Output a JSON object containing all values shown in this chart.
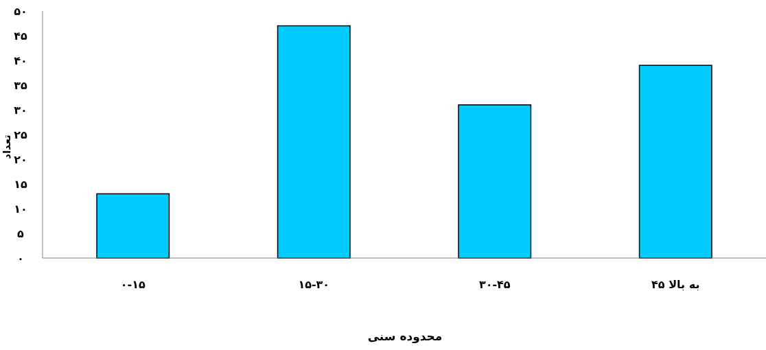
{
  "chart_data": {
    "type": "bar",
    "xlabel": "محدوده سنی",
    "ylabel": "تعداد",
    "categories": [
      "۰-۱۵",
      "۱۵-۳۰",
      "۳۰-۴۵",
      "۴۵ به بالا"
    ],
    "values": [
      13,
      47,
      31,
      39
    ],
    "color": "#00ccff",
    "ylim": [
      0,
      50
    ],
    "yticks": [
      {
        "value": 0,
        "label": "۰"
      },
      {
        "value": 5,
        "label": "۵"
      },
      {
        "value": 10,
        "label": "۱۰"
      },
      {
        "value": 15,
        "label": "۱۵"
      },
      {
        "value": 20,
        "label": "۲۰"
      },
      {
        "value": 25,
        "label": "۲۵"
      },
      {
        "value": 30,
        "label": "۳۰"
      },
      {
        "value": 35,
        "label": "۳۵"
      },
      {
        "value": 40,
        "label": "۴۰"
      },
      {
        "value": 45,
        "label": "۴۵"
      },
      {
        "value": 50,
        "label": "۵۰"
      }
    ],
    "grid": false
  }
}
